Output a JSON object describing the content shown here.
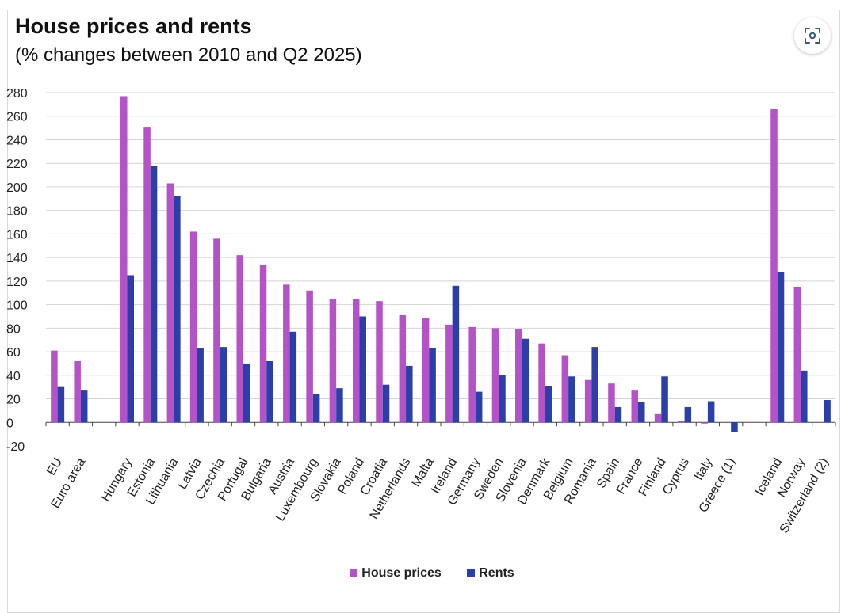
{
  "title": "House prices and rents",
  "subtitle": "(% changes between 2010 and Q2 2025)",
  "expand_icon": "focus-expand-icon",
  "colors": {
    "house_prices": "#b452c8",
    "rents": "#2a3fa8",
    "grid": "#d4d4d4"
  },
  "chart_data": {
    "type": "bar",
    "title": "House prices and rents",
    "subtitle": "(% changes between 2010 and Q2 2025)",
    "xlabel": "",
    "ylabel": "",
    "ylim": [
      -20,
      280
    ],
    "yticks": [
      -20,
      0,
      20,
      40,
      60,
      80,
      100,
      120,
      140,
      160,
      180,
      200,
      220,
      240,
      260,
      280
    ],
    "legend_position": "bottom",
    "grid": true,
    "categories": [
      "EU",
      "Euro area",
      "",
      "Hungary",
      "Estonia",
      "Lithuania",
      "Latvia",
      "Czechia",
      "Portugal",
      "Bulgaria",
      "Austria",
      "Luxembourg",
      "Slovakia",
      "Poland",
      "Croatia",
      "Netherlands",
      "Malta",
      "Ireland",
      "Germany",
      "Sweden",
      "Slovenia",
      "Denmark",
      "Belgium",
      "Romania",
      "Spain",
      "France",
      "Finland",
      "Cyprus",
      "Italy",
      "Greece (1)",
      "",
      "Iceland",
      "Norway",
      "Switzerland (2)"
    ],
    "series": [
      {
        "name": "House prices",
        "values": [
          61,
          52,
          null,
          277,
          251,
          203,
          162,
          156,
          142,
          134,
          117,
          112,
          105,
          105,
          103,
          91,
          89,
          83,
          81,
          80,
          79,
          67,
          57,
          36,
          33,
          27,
          7,
          1,
          -1,
          0,
          null,
          266,
          115,
          null
        ]
      },
      {
        "name": "Rents",
        "values": [
          30,
          27,
          null,
          125,
          218,
          192,
          63,
          64,
          50,
          52,
          77,
          24,
          29,
          90,
          32,
          48,
          63,
          116,
          26,
          40,
          71,
          31,
          39,
          64,
          13,
          17,
          39,
          13,
          18,
          -8,
          null,
          128,
          44,
          19
        ]
      }
    ]
  }
}
